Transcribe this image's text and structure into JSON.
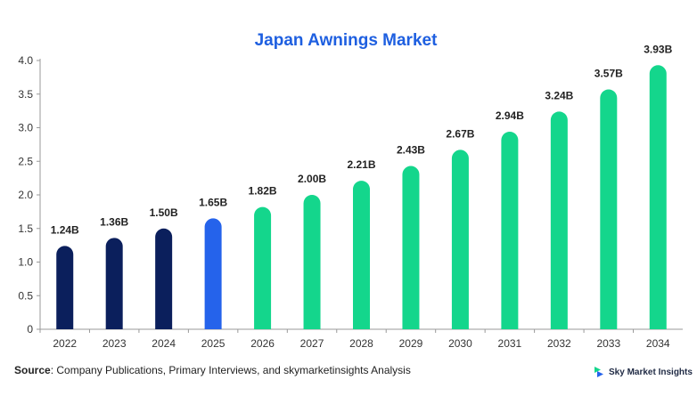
{
  "chart_data": {
    "type": "bar",
    "title": "Japan Awnings Market",
    "xlabel": "",
    "ylabel": "",
    "categories": [
      "2022",
      "2023",
      "2024",
      "2025",
      "2026",
      "2027",
      "2028",
      "2029",
      "2030",
      "2031",
      "2032",
      "2033",
      "2034"
    ],
    "values": [
      1.24,
      1.36,
      1.5,
      1.65,
      1.82,
      2.0,
      2.21,
      2.43,
      2.67,
      2.94,
      3.24,
      3.57,
      3.93
    ],
    "value_labels": [
      "1.24B",
      "1.36B",
      "1.50B",
      "1.65B",
      "1.82B",
      "2.00B",
      "2.21B",
      "2.43B",
      "2.67B",
      "2.94B",
      "3.24B",
      "3.57B",
      "3.93B"
    ],
    "ylim": [
      0,
      4.0
    ],
    "yticks": [
      "0",
      "0.5",
      "1.0",
      "1.5",
      "2.0",
      "2.5",
      "3.0",
      "3.5",
      "4.0"
    ],
    "grid": false,
    "legend": "none",
    "bar_colors": [
      "#0b1f5c",
      "#0b1f5c",
      "#0b1f5c",
      "#2563eb",
      "#14d68c",
      "#14d68c",
      "#14d68c",
      "#14d68c",
      "#14d68c",
      "#14d68c",
      "#14d68c",
      "#14d68c",
      "#14d68c"
    ]
  },
  "colors": {
    "title": "#1e5fe0",
    "axis": "#999999"
  },
  "footer": {
    "source_label": "Source",
    "source_text": ": Company Publications, Primary Interviews, and skymarketinsights Analysis"
  },
  "brand": {
    "name": "Sky Market Insights",
    "logo_icon": "sky-market-insights-logo-icon"
  }
}
